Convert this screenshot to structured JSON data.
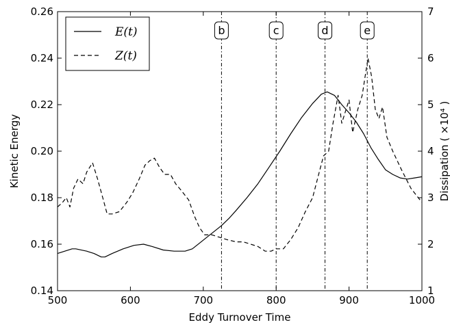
{
  "chart_data": {
    "type": "line",
    "xlabel": "Eddy Turnover Time",
    "ylabel": "Kinetic Energy",
    "y2label": "Dissipation ( ×10⁴ )",
    "xlim": [
      500,
      1000
    ],
    "ylim": [
      0.14,
      0.26
    ],
    "y2lim": [
      1,
      7
    ],
    "x_ticks": [
      500,
      600,
      700,
      800,
      900,
      1000
    ],
    "x_tick_labels": [
      "500",
      "600",
      "700",
      "800",
      "900",
      "1000"
    ],
    "y_ticks": [
      0.14,
      0.16,
      0.18,
      0.2,
      0.22,
      0.24,
      0.26
    ],
    "y_tick_labels": [
      "0.14",
      "0.16",
      "0.18",
      "0.20",
      "0.22",
      "0.24",
      "0.26"
    ],
    "y2_ticks": [
      1,
      2,
      3,
      4,
      5,
      6,
      7
    ],
    "y2_tick_labels": [
      "1",
      "2",
      "3",
      "4",
      "5",
      "6",
      "7"
    ],
    "grid": false,
    "legend_position": "top-left",
    "series": [
      {
        "name": "E(t)",
        "axis": "left",
        "style": "solid",
        "x": [
          500,
          510,
          520,
          525,
          540,
          550,
          560,
          565,
          575,
          590,
          605,
          618,
          630,
          645,
          660,
          675,
          685,
          695,
          705,
          715,
          725,
          735,
          745,
          760,
          775,
          790,
          805,
          820,
          835,
          850,
          862,
          870,
          880,
          890,
          900,
          910,
          920,
          930,
          940,
          950,
          960,
          970,
          980,
          990,
          1000
        ],
        "y": [
          0.156,
          0.157,
          0.158,
          0.158,
          0.157,
          0.156,
          0.1545,
          0.1545,
          0.156,
          0.158,
          0.1595,
          0.16,
          0.159,
          0.1575,
          0.157,
          0.157,
          0.158,
          0.1605,
          0.163,
          0.1655,
          0.168,
          0.171,
          0.1745,
          0.18,
          0.186,
          0.193,
          0.2,
          0.2075,
          0.2145,
          0.2205,
          0.2245,
          0.2255,
          0.224,
          0.22,
          0.2165,
          0.2125,
          0.2075,
          0.2015,
          0.1965,
          0.192,
          0.19,
          0.1885,
          0.188,
          0.1885,
          0.189
        ]
      },
      {
        "name": "Z(t)",
        "axis": "right",
        "style": "dashed",
        "x": [
          500,
          507,
          512,
          517,
          522,
          528,
          535,
          540,
          548,
          555,
          562,
          568,
          575,
          585,
          595,
          603,
          612,
          620,
          627,
          633,
          640,
          647,
          655,
          662,
          670,
          680,
          688,
          695,
          702,
          712,
          722,
          732,
          745,
          755,
          765,
          775,
          785,
          793,
          800,
          810,
          820,
          830,
          840,
          850,
          860,
          865,
          872,
          878,
          885,
          890,
          896,
          900,
          905,
          912,
          918,
          922,
          926,
          931,
          936,
          941,
          946,
          952,
          960,
          972,
          985,
          1000
        ],
        "y": [
          2.8,
          2.9,
          3.0,
          2.8,
          3.2,
          3.4,
          3.3,
          3.55,
          3.75,
          3.4,
          3.0,
          2.65,
          2.65,
          2.7,
          2.9,
          3.1,
          3.4,
          3.7,
          3.8,
          3.85,
          3.65,
          3.5,
          3.5,
          3.3,
          3.15,
          2.95,
          2.6,
          2.35,
          2.2,
          2.2,
          2.15,
          2.1,
          2.05,
          2.05,
          2.0,
          1.95,
          1.85,
          1.85,
          1.9,
          1.9,
          2.1,
          2.35,
          2.7,
          3.0,
          3.6,
          3.9,
          4.0,
          4.6,
          5.2,
          4.6,
          4.9,
          5.1,
          4.4,
          4.9,
          5.2,
          5.6,
          6.0,
          5.6,
          4.9,
          4.7,
          4.95,
          4.3,
          4.0,
          3.6,
          3.2,
          2.9
        ]
      }
    ],
    "markers": [
      {
        "label": "b",
        "x": 725
      },
      {
        "label": "c",
        "x": 800
      },
      {
        "label": "d",
        "x": 867
      },
      {
        "label": "e",
        "x": 925
      }
    ]
  }
}
